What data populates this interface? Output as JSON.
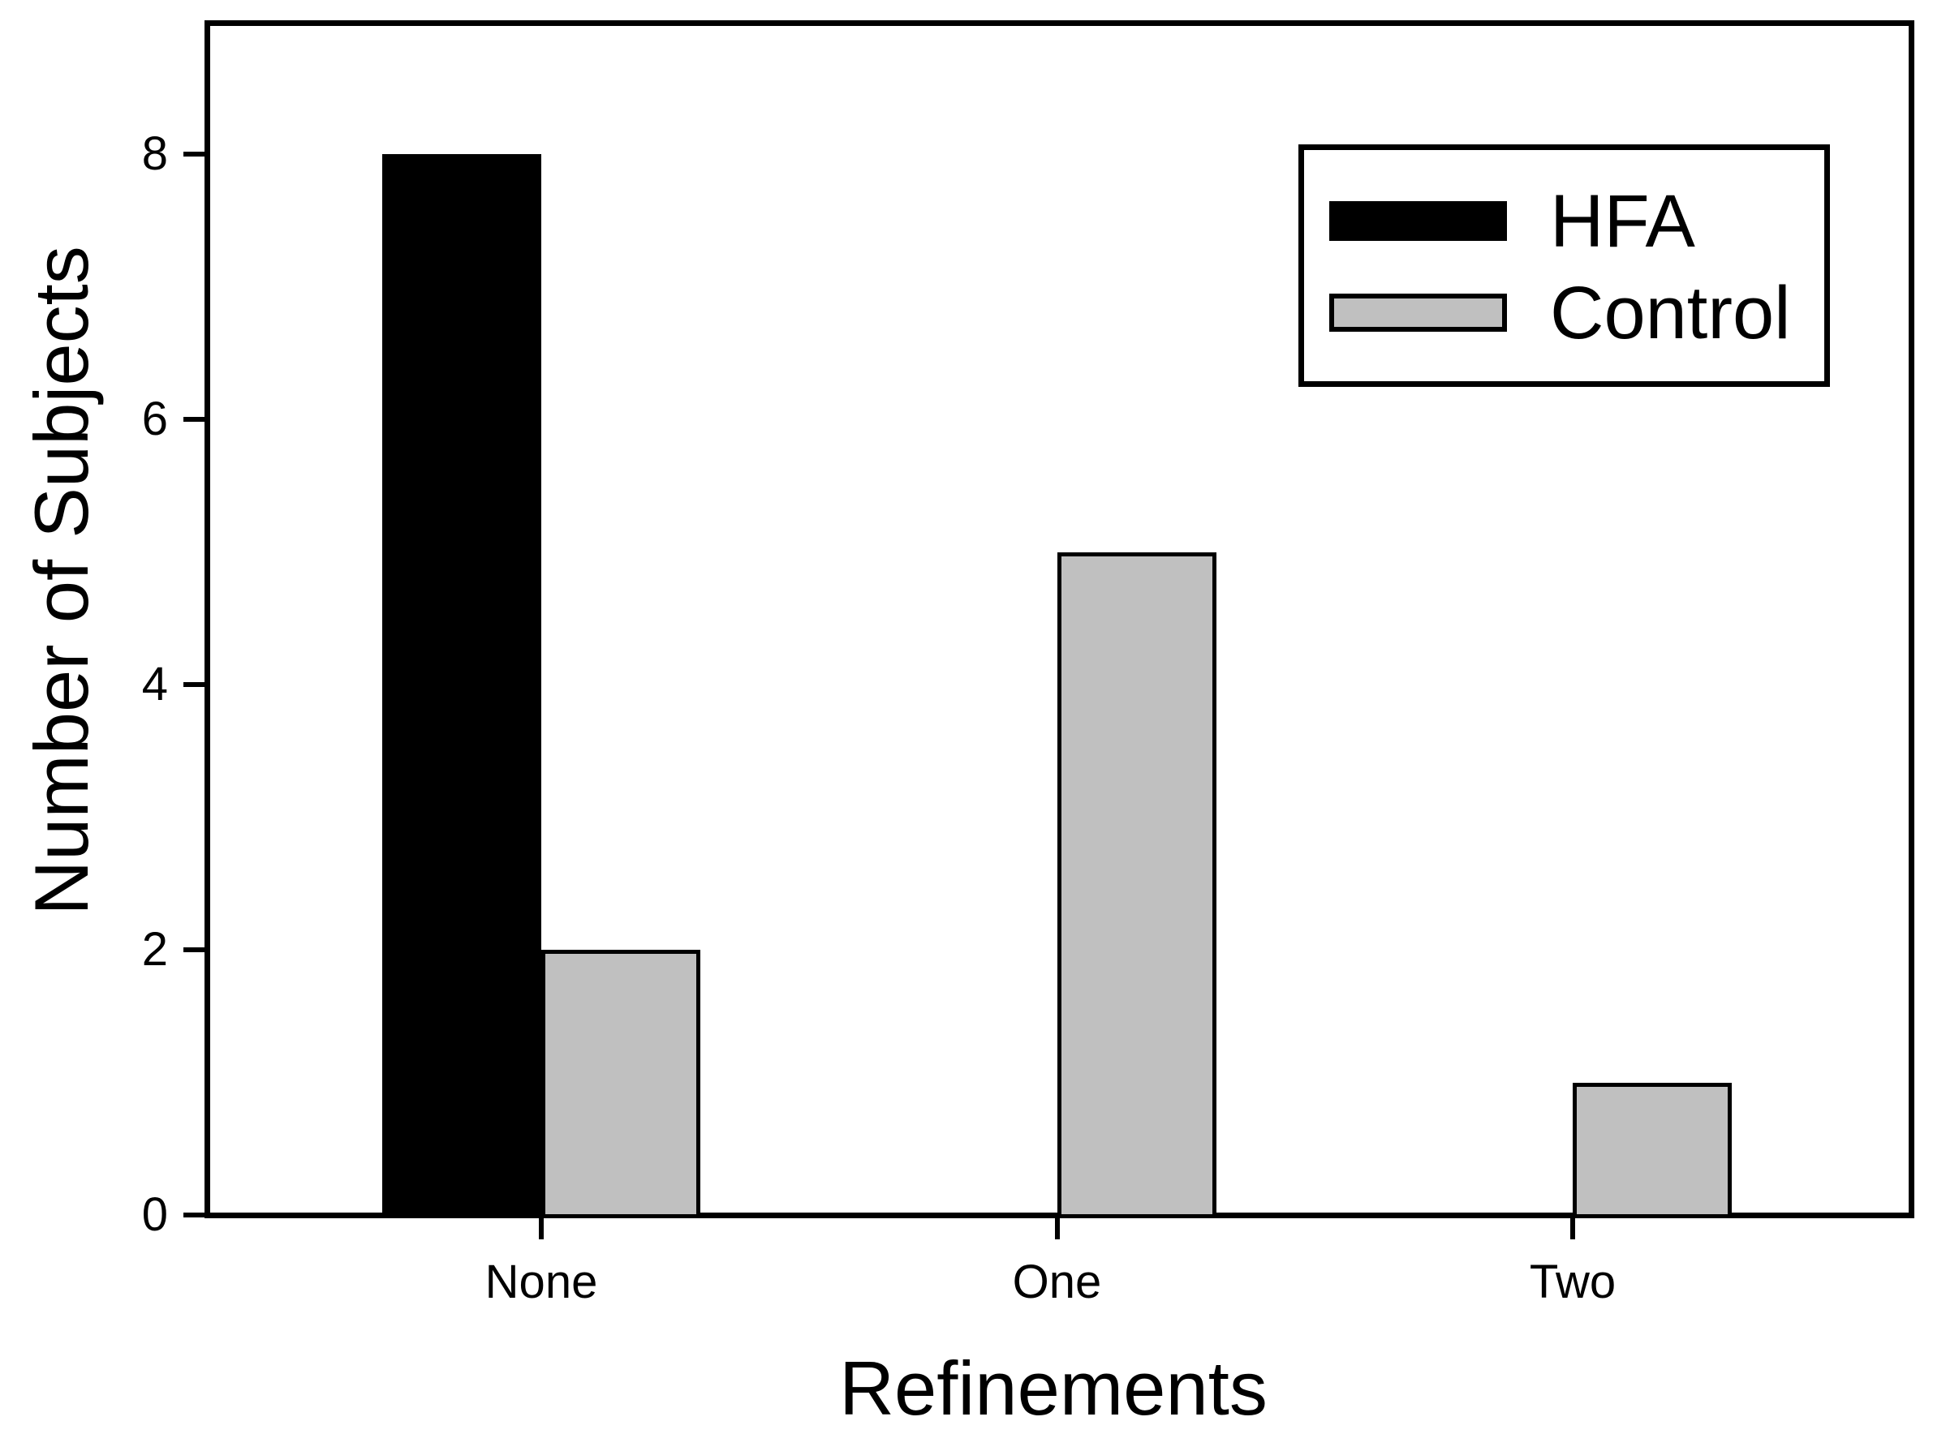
{
  "chart_data": {
    "type": "bar",
    "title": "",
    "xlabel": "Refinements",
    "ylabel": "Number of Subjects",
    "categories": [
      "None",
      "One",
      "Two"
    ],
    "series": [
      {
        "name": "HFA",
        "color": "#000000",
        "border_color": "#000000",
        "values": [
          8,
          0,
          0
        ]
      },
      {
        "name": "Control",
        "color": "#c0c0c0",
        "border_color": "#000000",
        "values": [
          2,
          5,
          1
        ]
      }
    ],
    "yticks": [
      0,
      2,
      4,
      6,
      8
    ],
    "ylim": [
      0,
      9
    ],
    "grid": false,
    "legend_position": "upper-right",
    "legend_entries": [
      "HFA",
      "Control"
    ]
  }
}
